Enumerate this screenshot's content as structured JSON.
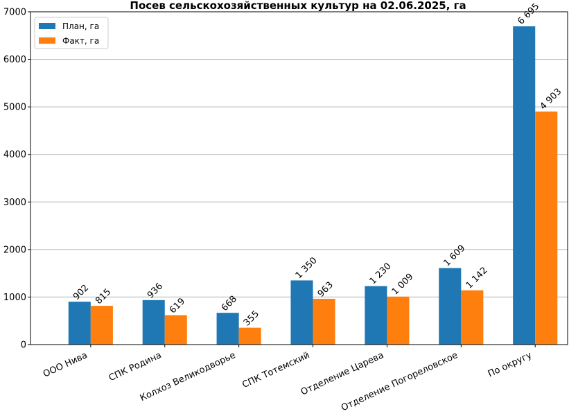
{
  "chart_data": {
    "type": "bar",
    "title": "Посев сельскохозяйственных культур на 02.06.2025, га",
    "categories": [
      "ООО Нива",
      "СПК Родина",
      "Колхоз Великодворье",
      "СПК Тотемский",
      "Отделение Царева",
      "Отделение Погореловское",
      "По округу"
    ],
    "series": [
      {
        "name": "План, га",
        "color": "#1f77b4",
        "values": [
          902,
          936,
          668,
          1350,
          1230,
          1609,
          6695
        ],
        "labels": [
          "902",
          "936",
          "668",
          "1 350",
          "1 230",
          "1 609",
          "6 695"
        ]
      },
      {
        "name": "Факт, га",
        "color": "#ff7f0e",
        "values": [
          815,
          619,
          355,
          963,
          1009,
          1142,
          4903
        ],
        "labels": [
          "815",
          "619",
          "355",
          "963",
          "1 009",
          "1 142",
          "4 903"
        ]
      }
    ],
    "ylim": [
      0,
      7000
    ],
    "yticks": [
      0,
      1000,
      2000,
      3000,
      4000,
      5000,
      6000,
      7000
    ],
    "grid": "y",
    "legend": "top-left",
    "xlabel": "",
    "ylabel": ""
  }
}
